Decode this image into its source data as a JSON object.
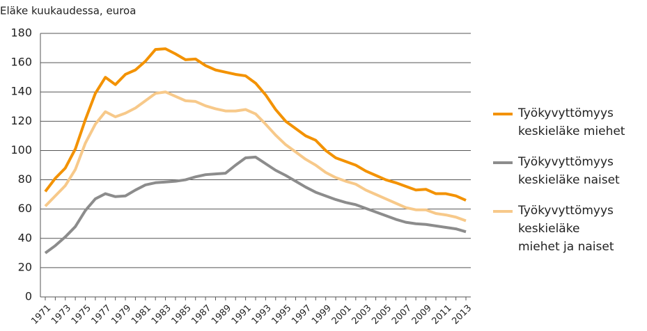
{
  "chart_data": {
    "type": "line",
    "ylabel": "Eläke kuukaudessa, euroa",
    "categories": [
      "1971",
      null,
      "1973",
      null,
      "1975",
      null,
      "1977",
      null,
      "1979",
      null,
      "1981",
      null,
      "1983",
      null,
      "1985",
      null,
      "1987",
      null,
      "1989",
      null,
      "1991",
      null,
      "1993",
      null,
      "1995",
      null,
      "1997",
      null,
      "1999",
      null,
      "2001",
      null,
      "2003",
      null,
      "2005",
      null,
      "2007",
      null,
      "2009",
      null,
      "2011",
      null,
      "2013"
    ],
    "series": [
      {
        "name": "Työkyvyttömyys\nkeskieläke miehet",
        "color": "#f39200",
        "values": [
          72,
          81,
          88,
          101,
          121,
          139,
          150,
          145,
          152,
          155,
          161,
          169,
          169.5,
          166,
          162,
          162.5,
          158,
          155,
          153.5,
          152,
          151,
          146,
          138,
          128,
          120,
          115,
          110,
          107,
          100,
          95,
          92.5,
          90,
          86,
          83,
          80,
          78,
          75.5,
          73,
          73.5,
          70.5,
          70.5,
          69,
          66
        ]
      },
      {
        "name": "Työkyvyttömyys\nkeskieläke naiset",
        "color": "#8c8c8c",
        "values": [
          30,
          35,
          41,
          48,
          59,
          67,
          70.5,
          68.5,
          69,
          73,
          76.5,
          78,
          78.5,
          79,
          80,
          82,
          83.5,
          84,
          84.5,
          90,
          95,
          95.5,
          91,
          86.5,
          83,
          79,
          75,
          71.5,
          69,
          66.5,
          64.5,
          63,
          60.5,
          58,
          55.5,
          53,
          51,
          50,
          49.5,
          48.5,
          47.5,
          46.5,
          44.5
        ]
      },
      {
        "name": "Työkyvyttömyys\nkeskieläke\nmiehet ja naiset",
        "color": "#f7c98a",
        "values": [
          62,
          69,
          76,
          87,
          105,
          118,
          126.5,
          123,
          125.5,
          129,
          134,
          139,
          140,
          137,
          134,
          133.5,
          130.5,
          128.5,
          127,
          127,
          128,
          125,
          118,
          110.5,
          104,
          99,
          94,
          90,
          85,
          81.5,
          79,
          77,
          73,
          70,
          67,
          64,
          61,
          59.5,
          59.5,
          57,
          56,
          54.5,
          52
        ]
      }
    ],
    "ylim": [
      0,
      180
    ],
    "yticks": [
      0,
      20,
      40,
      60,
      80,
      100,
      120,
      140,
      160,
      180
    ],
    "grid": true
  }
}
